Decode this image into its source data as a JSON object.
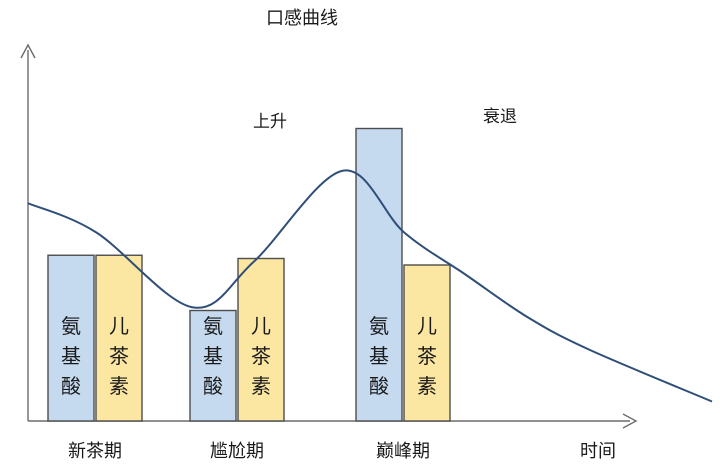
{
  "chart_data": {
    "type": "bar",
    "title": "口感曲线",
    "xlabel": "时间",
    "ylabel": "",
    "categories": [
      "新茶期",
      "尴尬期",
      "巅峰期"
    ],
    "series": [
      {
        "name": "氨基酸",
        "label_chars": [
          "氨",
          "基",
          "酸"
        ],
        "color": "#c5d9ef",
        "values": [
          5.1,
          3.4,
          9.0
        ]
      },
      {
        "name": "儿茶素",
        "label_chars": [
          "儿",
          "茶",
          "素"
        ],
        "color": "#fbe6a2",
        "values": [
          5.1,
          5.0,
          4.8
        ]
      }
    ],
    "ylim": [
      0,
      10
    ],
    "curve": {
      "name": "口感",
      "color": "#2f4e79",
      "x": [
        0,
        0.1,
        0.24,
        0.33,
        0.46,
        0.55,
        0.64,
        0.73,
        0.82,
        1.0
      ],
      "values": [
        6.7,
        5.8,
        3.5,
        4.9,
        7.7,
        5.8,
        4.5,
        3.2,
        2.2,
        0.6
      ],
      "annotations": [
        {
          "text": "上升",
          "at": 0.37
        },
        {
          "text": "衰退",
          "at": 0.73
        }
      ]
    },
    "grid": false,
    "legend": "none"
  }
}
